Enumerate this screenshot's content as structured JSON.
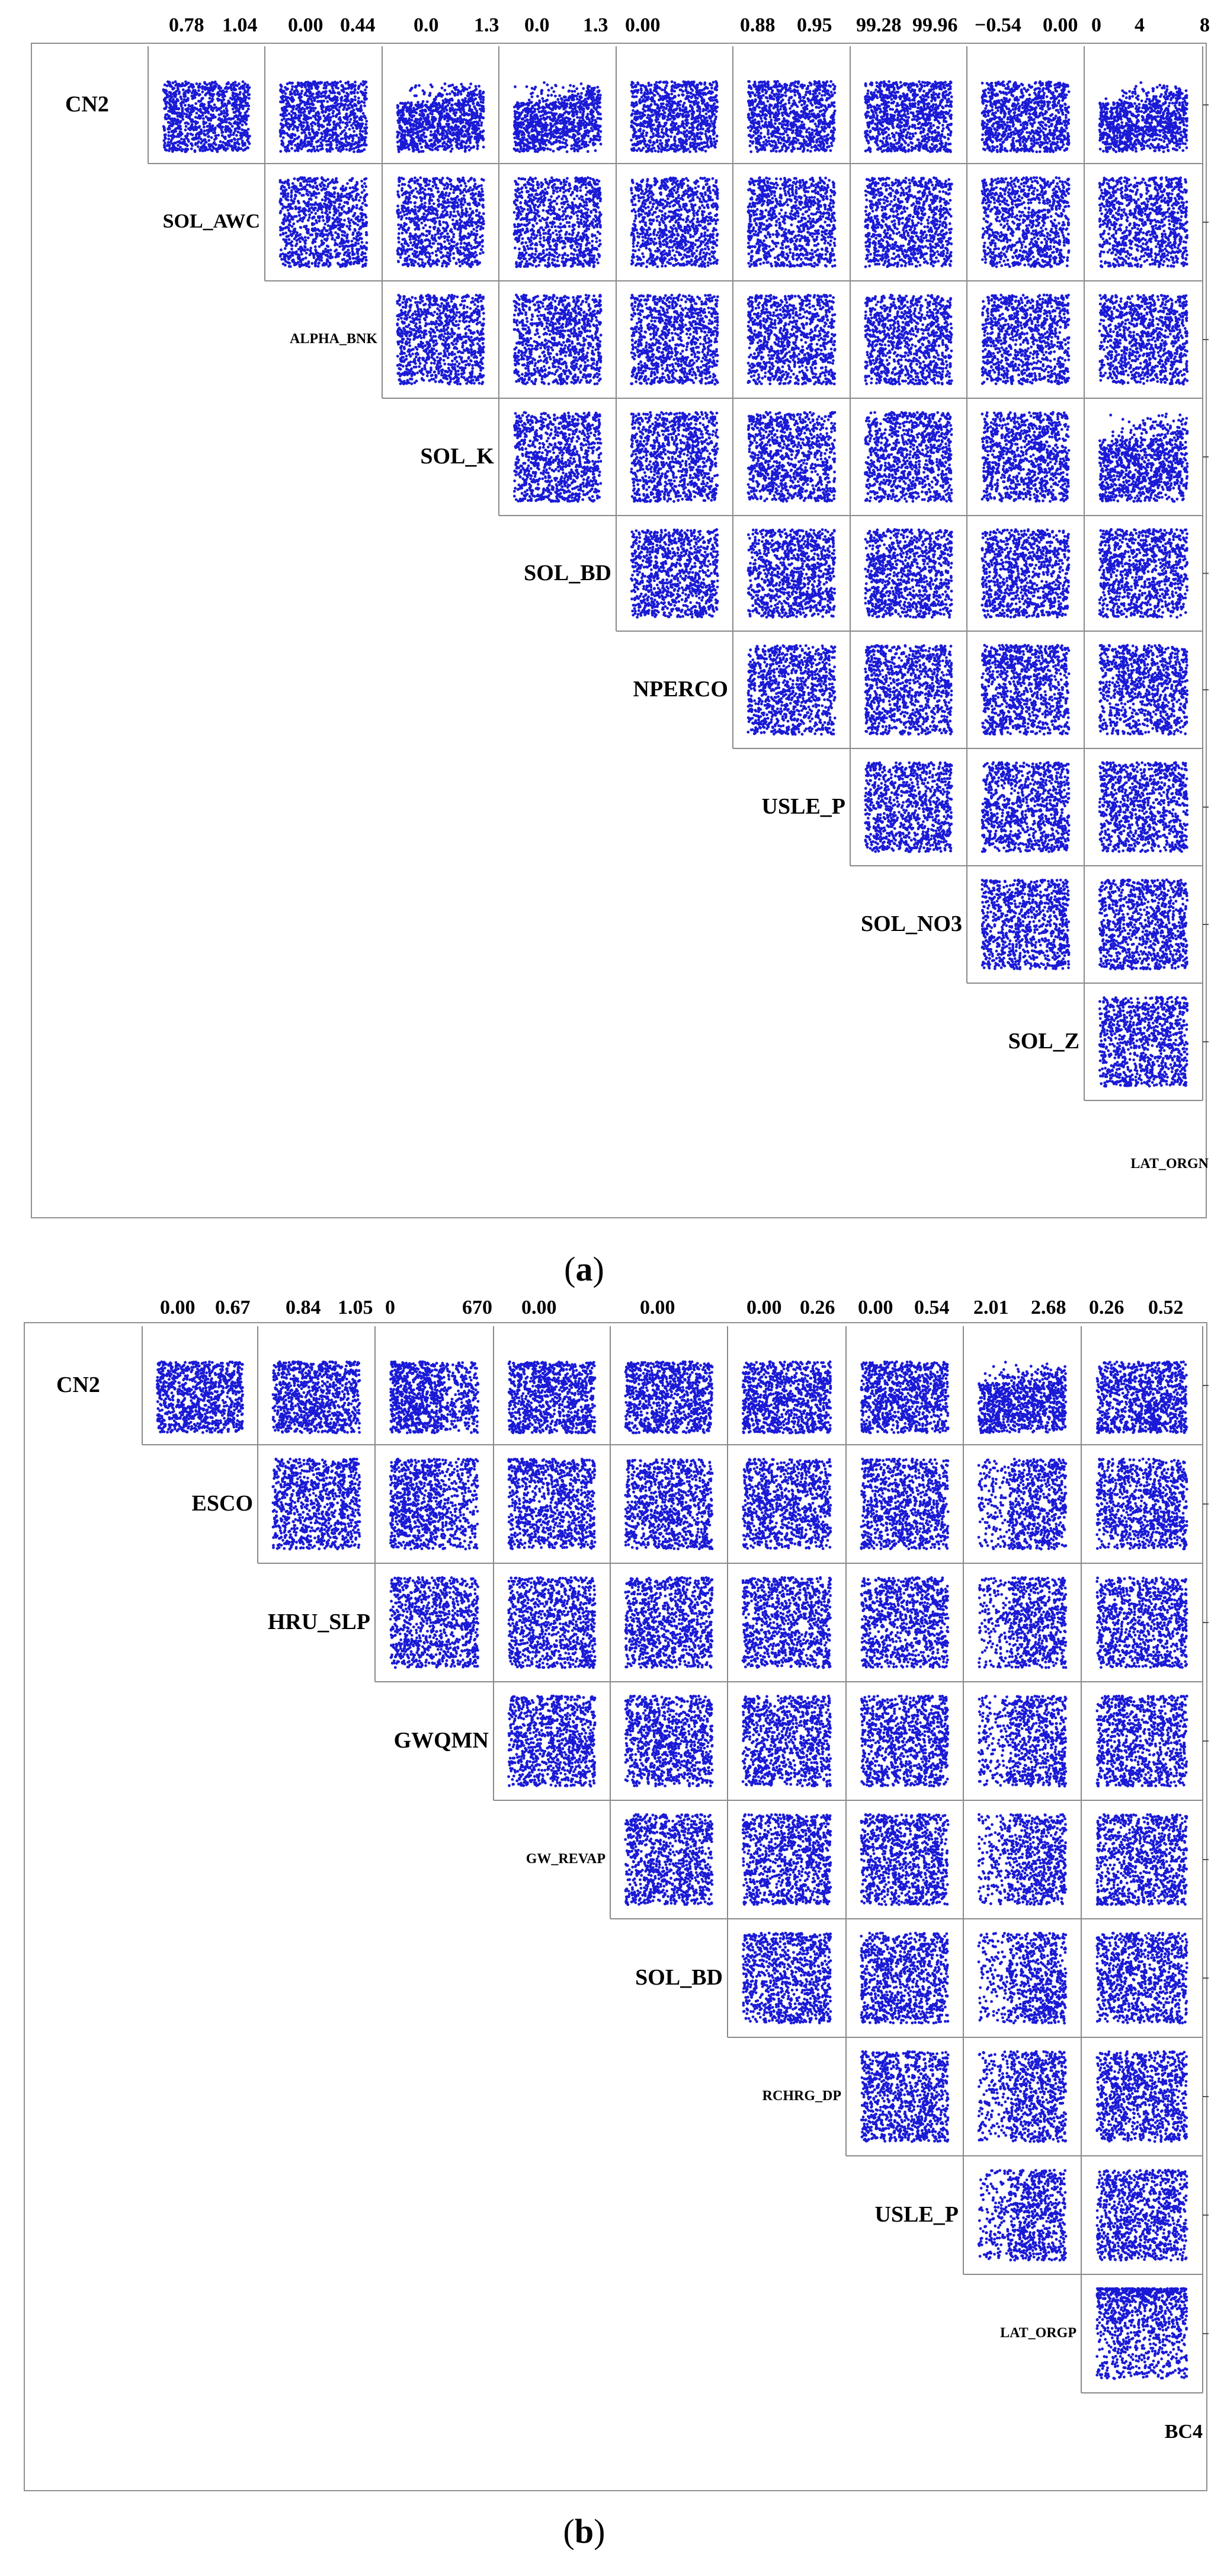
{
  "panel_a": {
    "caption_open": "(",
    "caption_letter": "a",
    "caption_close": ")",
    "top_tick_labels": [
      "0.78",
      "1.04",
      "0.00",
      "0.44",
      "0.0",
      "1.3",
      "0.0",
      "1.3",
      "0.00",
      "0.88",
      "0.95",
      "99.28",
      "99.96",
      "−0.54",
      "0.00",
      "0",
      "4",
      "8"
    ],
    "variables": [
      "CN2",
      "SOL_AWC",
      "ALPHA_BNK",
      "SOL_K",
      "SOL_BD",
      "NPERCO",
      "USLE_P",
      "SOL_NO3",
      "SOL_Z",
      "LAT_ORGN"
    ],
    "point_color": "#1a1ad6"
  },
  "panel_b": {
    "caption_open": "(",
    "caption_letter": "b",
    "caption_close": ")",
    "top_tick_labels": [
      "0.00",
      "0.67",
      "0.84",
      "1.05",
      "0",
      "670",
      "0.00",
      "0.00",
      "0.00",
      "0.26",
      "0.00",
      "0.54",
      "2.01",
      "2.68",
      "0.26",
      "0.52"
    ],
    "variables": [
      "CN2",
      "ESCO",
      "HRU_SLP",
      "GWQMN",
      "GW_REVAP",
      "SOL_BD",
      "RCHRG_DP",
      "USLE_P",
      "LAT_ORGP",
      "BC4"
    ],
    "point_color": "#1a1ad6"
  },
  "chart_data": [
    {
      "type": "scatter",
      "subtype": "scatter-matrix-upper-triangle",
      "title": "(a)",
      "variables": [
        "CN2",
        "SOL_AWC",
        "ALPHA_BNK",
        "SOL_K",
        "SOL_BD",
        "NPERCO",
        "USLE_P",
        "SOL_NO3",
        "SOL_Z",
        "LAT_ORGN"
      ],
      "column_ranges": [
        {
          "variable": "SOL_AWC",
          "ticks": [
            0.78,
            1.04
          ]
        },
        {
          "variable": "ALPHA_BNK",
          "ticks": [
            0.0,
            0.44
          ]
        },
        {
          "variable": "SOL_K",
          "ticks": [
            0.0,
            1.3
          ]
        },
        {
          "variable": "SOL_BD",
          "ticks": [
            0.0,
            1.3
          ]
        },
        {
          "variable": "NPERCO",
          "ticks": [
            0.0
          ]
        },
        {
          "variable": "USLE_P",
          "ticks": [
            0.88,
            0.95
          ]
        },
        {
          "variable": "SOL_NO3",
          "ticks": [
            99.28,
            99.96
          ]
        },
        {
          "variable": "SOL_Z",
          "ticks": [
            -0.54,
            0.0
          ]
        },
        {
          "variable": "LAT_ORGN",
          "ticks": [
            0,
            4,
            8
          ]
        }
      ],
      "points_per_panel": 1000
    },
    {
      "type": "scatter",
      "subtype": "scatter-matrix-upper-triangle",
      "title": "(b)",
      "variables": [
        "CN2",
        "ESCO",
        "HRU_SLP",
        "GWQMN",
        "GW_REVAP",
        "SOL_BD",
        "RCHRG_DP",
        "USLE_P",
        "LAT_ORGP",
        "BC4"
      ],
      "column_ranges": [
        {
          "variable": "ESCO",
          "ticks": [
            0.0,
            0.67
          ]
        },
        {
          "variable": "HRU_SLP",
          "ticks": [
            0.84,
            1.05
          ]
        },
        {
          "variable": "GWQMN",
          "ticks": [
            0,
            670
          ]
        },
        {
          "variable": "GW_REVAP",
          "ticks": [
            0.0
          ]
        },
        {
          "variable": "SOL_BD",
          "ticks": [
            0.0
          ]
        },
        {
          "variable": "RCHRG_DP",
          "ticks": [
            0.0,
            0.26
          ]
        },
        {
          "variable": "USLE_P",
          "ticks": [
            0.0,
            0.54
          ]
        },
        {
          "variable": "LAT_ORGP",
          "ticks": [
            2.01,
            2.68
          ]
        },
        {
          "variable": "BC4",
          "ticks": [
            0.26,
            0.52
          ]
        }
      ],
      "points_per_panel": 1000
    }
  ]
}
